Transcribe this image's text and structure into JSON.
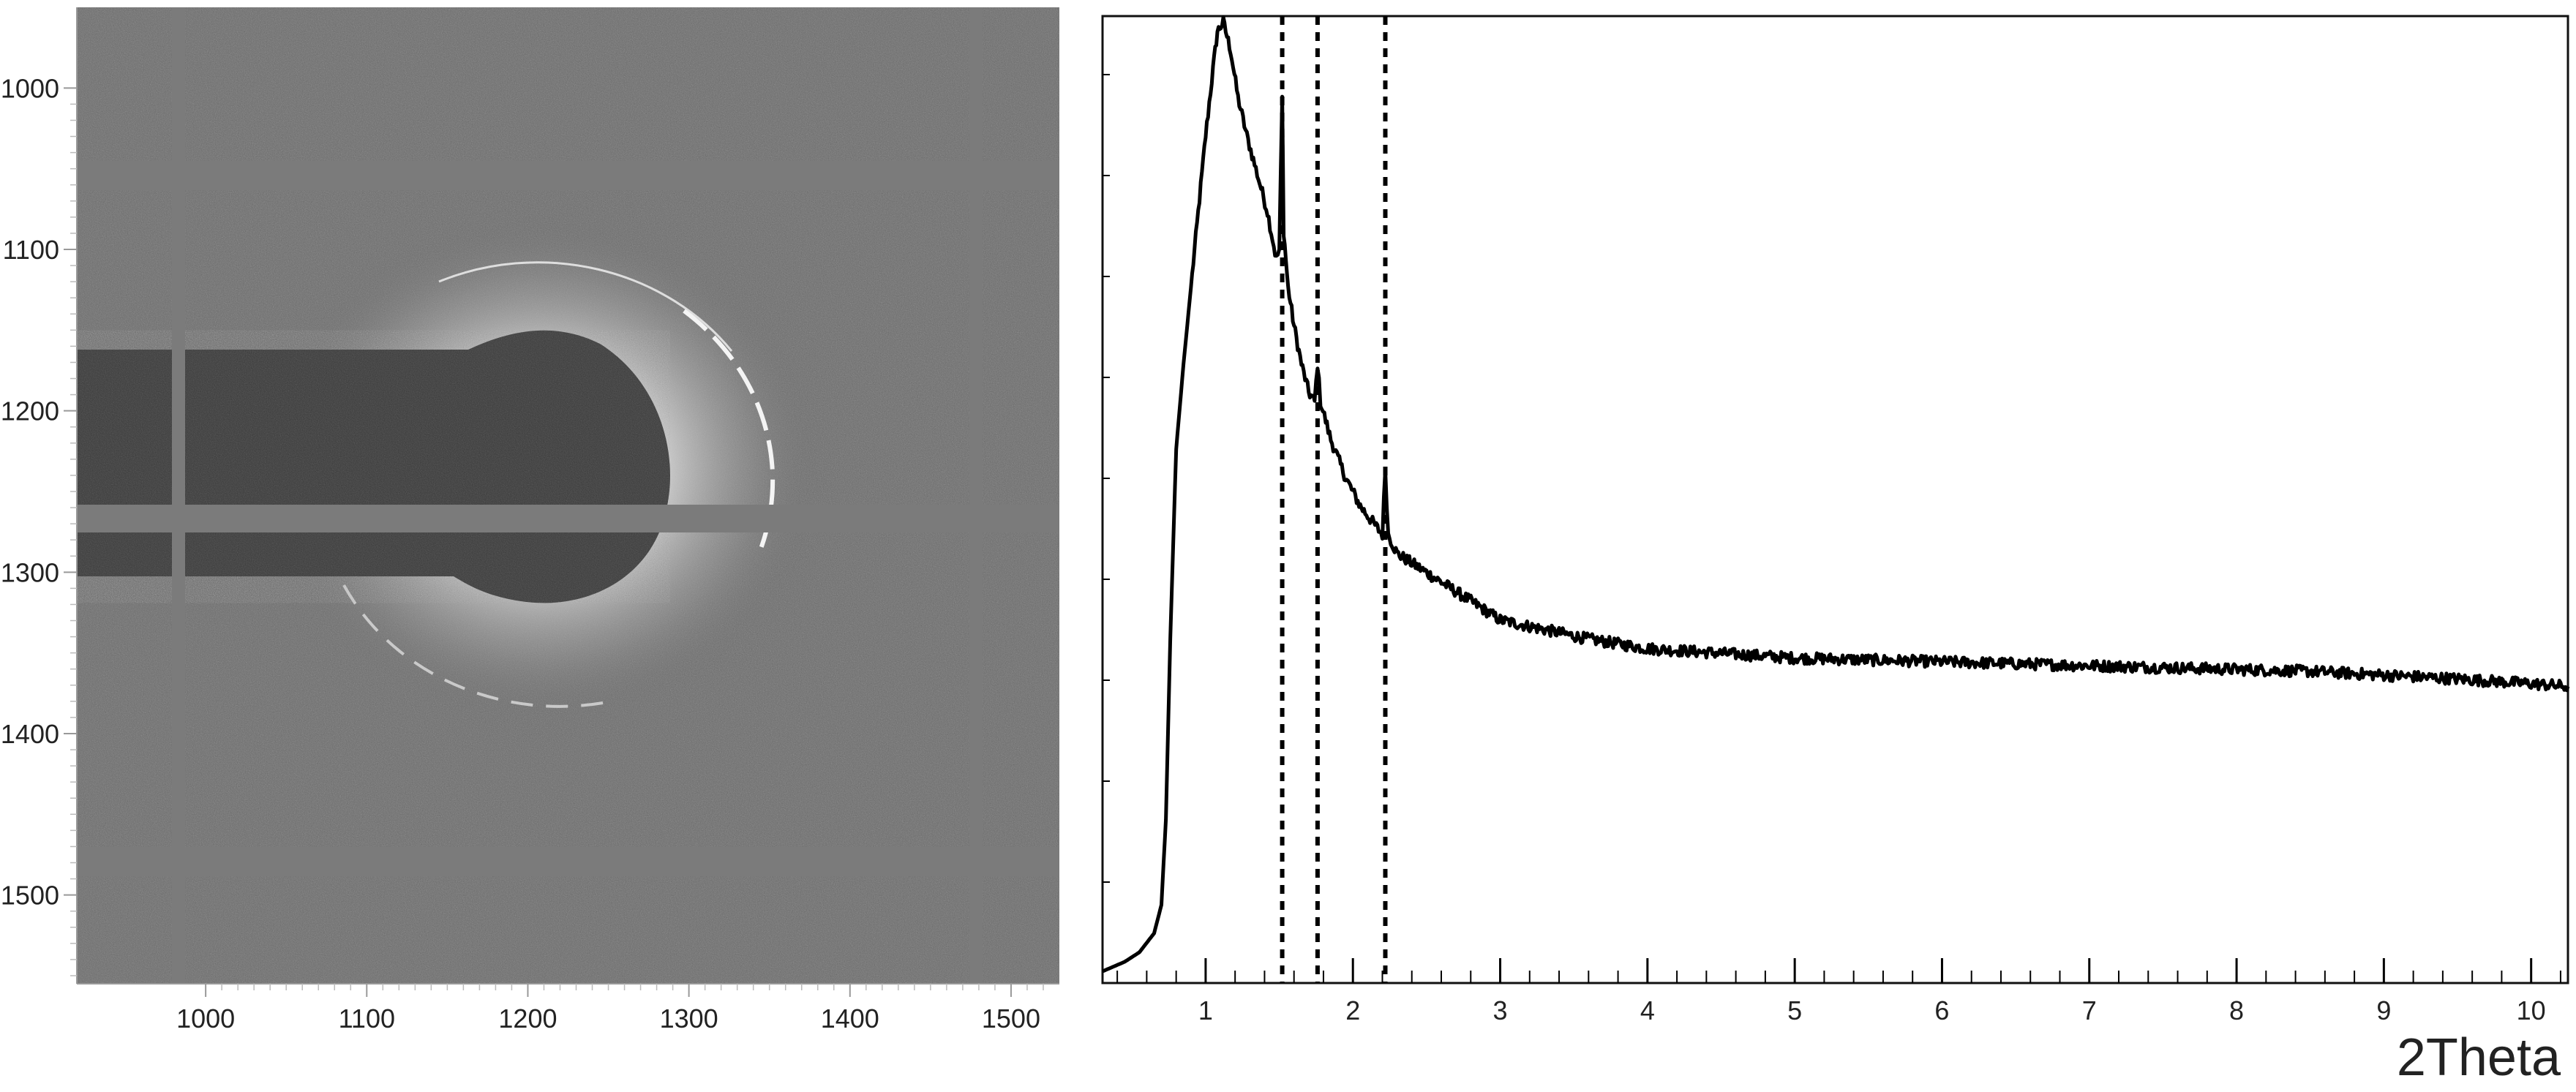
{
  "chart_data": [
    {
      "type": "heatmap",
      "title": "",
      "xlabel": "",
      "ylabel": "",
      "x_ticks": [
        1000,
        1100,
        1200,
        1300,
        1400,
        1500
      ],
      "y_ticks": [
        1000,
        1100,
        1200,
        1300,
        1400,
        1500
      ],
      "xlim": [
        920,
        1530
      ],
      "ylim": [
        1555,
        950
      ],
      "colors": {
        "background": "#6f6f6f",
        "beam_shadow": "#3a3a3a",
        "ring": "#e6e6e6",
        "gap": "#7b7b7b"
      }
    },
    {
      "type": "line",
      "title": "",
      "xlabel": "2Theta",
      "ylabel": "",
      "xlim": [
        0.3,
        10.25
      ],
      "ylim": [
        0,
        1
      ],
      "x_ticks": [
        1,
        2,
        3,
        4,
        5,
        6,
        7,
        8,
        9,
        10
      ],
      "grid": false,
      "vertical_lines": [
        {
          "x": 1.52,
          "style": "dotted"
        },
        {
          "x": 1.76,
          "style": "dotted"
        },
        {
          "x": 2.22,
          "style": "dotted"
        }
      ],
      "series": [
        {
          "x": [
            0.3,
            0.45,
            0.55,
            0.65,
            0.7,
            0.73,
            0.76,
            0.8,
            0.85,
            0.9,
            0.95,
            1.0,
            1.05,
            1.08,
            1.12,
            1.17,
            1.22,
            1.28,
            1.35,
            1.42,
            1.48,
            1.5,
            1.52,
            1.53,
            1.56,
            1.6,
            1.65,
            1.7,
            1.74,
            1.76,
            1.78,
            1.85,
            1.95,
            2.05,
            2.15,
            2.2,
            2.22,
            2.24,
            2.3,
            2.4,
            2.5,
            2.6,
            2.8,
            3.0,
            3.3,
            3.6,
            4.0,
            4.5,
            5.0,
            5.5,
            6.0,
            6.5,
            7.0,
            7.5,
            8.0,
            8.5,
            9.0,
            9.5,
            10.0,
            10.25
          ],
          "y": [
            0.0,
            0.01,
            0.02,
            0.04,
            0.07,
            0.16,
            0.35,
            0.55,
            0.64,
            0.72,
            0.8,
            0.88,
            0.95,
            0.99,
            1.0,
            0.97,
            0.92,
            0.88,
            0.84,
            0.8,
            0.75,
            0.76,
            0.92,
            0.78,
            0.72,
            0.68,
            0.64,
            0.61,
            0.6,
            0.64,
            0.6,
            0.56,
            0.52,
            0.49,
            0.47,
            0.46,
            0.53,
            0.46,
            0.44,
            0.43,
            0.42,
            0.41,
            0.39,
            0.37,
            0.36,
            0.35,
            0.34,
            0.335,
            0.33,
            0.328,
            0.326,
            0.324,
            0.322,
            0.32,
            0.318,
            0.316,
            0.312,
            0.308,
            0.303,
            0.3
          ]
        }
      ]
    }
  ]
}
